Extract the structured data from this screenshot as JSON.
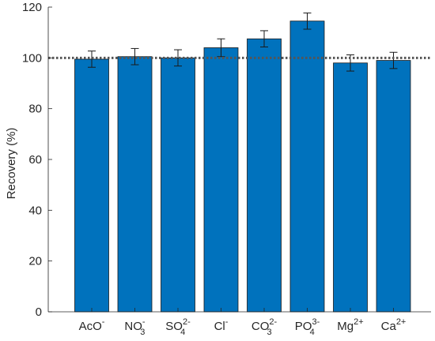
{
  "chart_data": {
    "type": "bar",
    "title": "",
    "xlabel": "",
    "ylabel": "Recovery (%)",
    "ylim": [
      0,
      120
    ],
    "yticks": [
      0,
      20,
      40,
      60,
      80,
      100,
      120
    ],
    "grid": false,
    "legend": "none",
    "bar_color": "#0072BD",
    "bar_edge_color": "#1a1a1a",
    "reference_line": {
      "y": 100,
      "style": "dotted",
      "color": "#555555"
    },
    "categories": [
      {
        "base": "AcO",
        "sup": "-",
        "sub": ""
      },
      {
        "base": "NO",
        "sup": "-",
        "sub": "3"
      },
      {
        "base": "SO",
        "sup": "2-",
        "sub": "4"
      },
      {
        "base": "Cl",
        "sup": "-",
        "sub": ""
      },
      {
        "base": "CO",
        "sup": "2-",
        "sub": "3"
      },
      {
        "base": "PO",
        "sup": "3-",
        "sub": "4"
      },
      {
        "base": "Mg",
        "sup": "2+",
        "sub": ""
      },
      {
        "base": "Ca",
        "sup": "2+",
        "sub": ""
      }
    ],
    "series": [
      {
        "values": [
          99.5,
          100.5,
          100.0,
          104.0,
          107.5,
          114.5,
          98.0,
          99.0
        ],
        "errors": [
          3.2,
          3.2,
          3.2,
          3.5,
          3.2,
          3.2,
          3.2,
          3.2
        ]
      }
    ]
  }
}
